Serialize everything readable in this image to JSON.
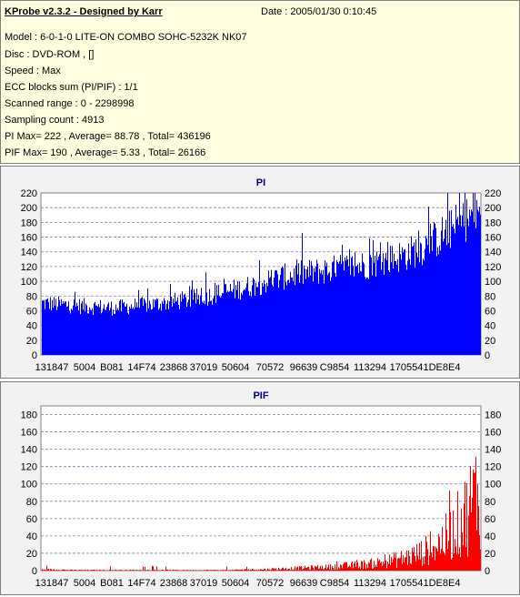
{
  "info": {
    "title": "KProbe v2.3.2 - Designed by Karr",
    "date": "Date : 2005/01/30 0:10:45",
    "lines": [
      "Model : 6-0-1-0 LITE-ON COMBO SOHC-5232K NK07",
      "Disc : DVD-ROM ,  []",
      "Speed : Max",
      "ECC blocks sum (PI/PIF) : 1/1",
      "Scanned range : 0 - 2298998",
      "Sampling count : 4913",
      "PI Max= 222 , Average= 88.78 , Total= 436196",
      "PIF Max= 190 , Average= 5.33 , Total= 26166"
    ]
  },
  "colors": {
    "pi": "#0000ff",
    "pif": "#ff0000",
    "grid": "#8080b0",
    "plot_bg": "#ffffff",
    "panel_bg": "#f2f2f2",
    "title_text": "#000080"
  },
  "chart_data": [
    {
      "type": "bar",
      "title": "PI",
      "ylim": [
        0,
        220
      ],
      "yticks": [
        0,
        20,
        40,
        60,
        80,
        100,
        120,
        140,
        160,
        180,
        200,
        220
      ],
      "xtick_labels": [
        "131847",
        "5004",
        "B081",
        "14F74",
        "23868",
        "37019",
        "50604",
        "70572",
        "96639",
        "C9854",
        "113294",
        "170554",
        "1DE8E4"
      ],
      "grid": "dashed horizontal",
      "series": [
        {
          "values": [
            75,
            73,
            72,
            70,
            69,
            68,
            70,
            72,
            74,
            77,
            80,
            84,
            88,
            93,
            98,
            104,
            110,
            115,
            118,
            121,
            124,
            127,
            130,
            134,
            139,
            146,
            155,
            168,
            182,
            196,
            207
          ]
        }
      ]
    },
    {
      "type": "bar",
      "title": "PIF",
      "ylim": [
        0,
        190
      ],
      "yticks": [
        0,
        20,
        40,
        60,
        80,
        100,
        120,
        140,
        160,
        180
      ],
      "xtick_labels": [
        "131847",
        "5004",
        "B081",
        "14F74",
        "23868",
        "37019",
        "50604",
        "70572",
        "96639",
        "C9854",
        "113294",
        "170554",
        "1DE8E4"
      ],
      "grid": "dashed horizontal",
      "series": [
        {
          "values": [
            2,
            2,
            1,
            1,
            1,
            1,
            1,
            1,
            1,
            1,
            1,
            1,
            1,
            1,
            2,
            2,
            3,
            4,
            5,
            6,
            7,
            9,
            11,
            14,
            18,
            24,
            32,
            45,
            65,
            100,
            150
          ]
        }
      ]
    }
  ]
}
